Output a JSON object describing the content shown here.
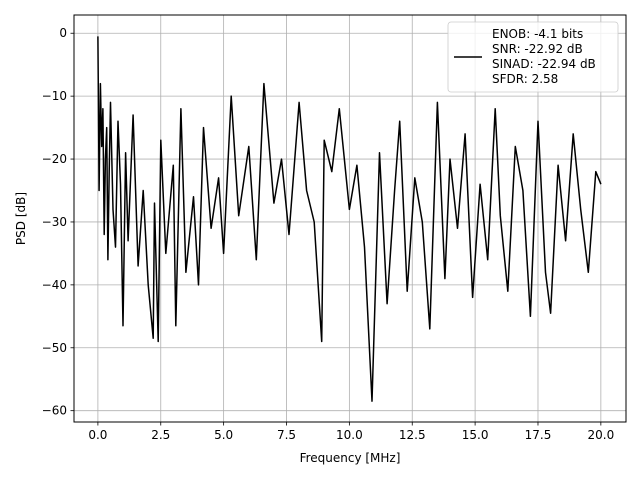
{
  "chart_data": {
    "type": "line",
    "title": "",
    "xlabel": "Frequency [MHz]",
    "ylabel": "PSD [dB]",
    "xlim": [
      -0.95,
      21.0
    ],
    "ylim": [
      -61.8,
      2.9
    ],
    "x_ticks": [
      0.0,
      2.5,
      5.0,
      7.5,
      10.0,
      12.5,
      15.0,
      17.5,
      20.0
    ],
    "x_tick_labels": [
      "0.0",
      "2.5",
      "5.0",
      "7.5",
      "10.0",
      "12.5",
      "15.0",
      "17.5",
      "20.0"
    ],
    "y_ticks": [
      0,
      -10,
      -20,
      -30,
      -40,
      -50,
      -60
    ],
    "y_tick_labels": [
      "0",
      "−10",
      "−20",
      "−30",
      "−40",
      "−50",
      "−60"
    ],
    "grid": true,
    "legend_placement": "top-right",
    "series": [
      {
        "name": "ENOB: -4.1 bits\nSNR: -22.92 dB\nSINAD: -22.94 dB\nSFDR: 2.58",
        "color": "#000000",
        "x": [
          0.0,
          0.05,
          0.1,
          0.15,
          0.2,
          0.25,
          0.3,
          0.35,
          0.4,
          0.45,
          0.5,
          0.6,
          0.7,
          0.8,
          0.9,
          1.0,
          1.1,
          1.2,
          1.4,
          1.6,
          1.8,
          2.0,
          2.2,
          2.25,
          2.4,
          2.5,
          2.7,
          3.0,
          3.1,
          3.3,
          3.5,
          3.8,
          4.0,
          4.2,
          4.5,
          4.8,
          5.0,
          5.3,
          5.6,
          6.0,
          6.3,
          6.6,
          7.0,
          7.3,
          7.6,
          8.0,
          8.3,
          8.6,
          8.9,
          9.0,
          9.3,
          9.6,
          10.0,
          10.3,
          10.6,
          10.9,
          11.2,
          11.5,
          11.8,
          12.0,
          12.3,
          12.6,
          12.9,
          13.2,
          13.5,
          13.8,
          14.0,
          14.3,
          14.6,
          14.9,
          15.2,
          15.5,
          15.8,
          16.0,
          16.3,
          16.6,
          16.9,
          17.2,
          17.5,
          17.8,
          18.0,
          18.3,
          18.6,
          18.9,
          19.2,
          19.5,
          19.8,
          20.0
        ],
        "y": [
          -0.5,
          -25,
          -8,
          -18,
          -12,
          -32,
          -20,
          -15,
          -36,
          -22,
          -11,
          -28,
          -34,
          -14,
          -24,
          -46.5,
          -19,
          -33,
          -13,
          -37,
          -25,
          -40,
          -48.5,
          -27,
          -49,
          -17,
          -35,
          -21,
          -46.5,
          -12,
          -38,
          -26,
          -40,
          -15,
          -31,
          -23,
          -35,
          -10,
          -29,
          -18,
          -36,
          -8,
          -27,
          -20,
          -32,
          -11,
          -25,
          -30,
          -49,
          -17,
          -22,
          -12,
          -28,
          -21,
          -34,
          -58.5,
          -19,
          -43,
          -25,
          -14,
          -41,
          -23,
          -30,
          -47,
          -11,
          -39,
          -20,
          -31,
          -16,
          -42,
          -24,
          -36,
          -12,
          -29,
          -41,
          -18,
          -25,
          -45,
          -14,
          -38,
          -44.5,
          -21,
          -33,
          -16,
          -28,
          -38,
          -22,
          -24
        ]
      }
    ]
  }
}
